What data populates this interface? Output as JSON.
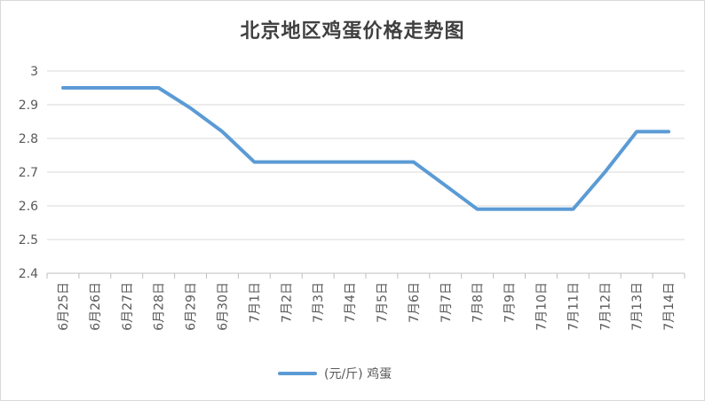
{
  "chart_data": {
    "type": "line",
    "title": "北京地区鸡蛋价格走势图",
    "xlabel": "",
    "ylabel": "",
    "categories": [
      "6月25日",
      "6月26日",
      "6月27日",
      "6月28日",
      "6月29日",
      "6月30日",
      "7月1日",
      "7月2日",
      "7月3日",
      "7月4日",
      "7月5日",
      "7月6日",
      "7月7日",
      "7月8日",
      "7月9日",
      "7月10日",
      "7月11日",
      "7月12日",
      "7月13日",
      "7月14日"
    ],
    "series": [
      {
        "name": "(元/斤) 鸡蛋",
        "color": "#5b9bd5",
        "values": [
          2.95,
          2.95,
          2.95,
          2.95,
          2.89,
          2.82,
          2.73,
          2.73,
          2.73,
          2.73,
          2.73,
          2.73,
          2.66,
          2.59,
          2.59,
          2.59,
          2.59,
          2.7,
          2.82,
          2.82
        ]
      }
    ],
    "ylim": [
      2.4,
      3.0
    ],
    "yticks": [
      "2.4",
      "2.5",
      "2.6",
      "2.7",
      "2.8",
      "2.9",
      "3"
    ],
    "grid": true,
    "legend_position": "bottom"
  },
  "legend_label": "(元/斤)  鸡蛋"
}
